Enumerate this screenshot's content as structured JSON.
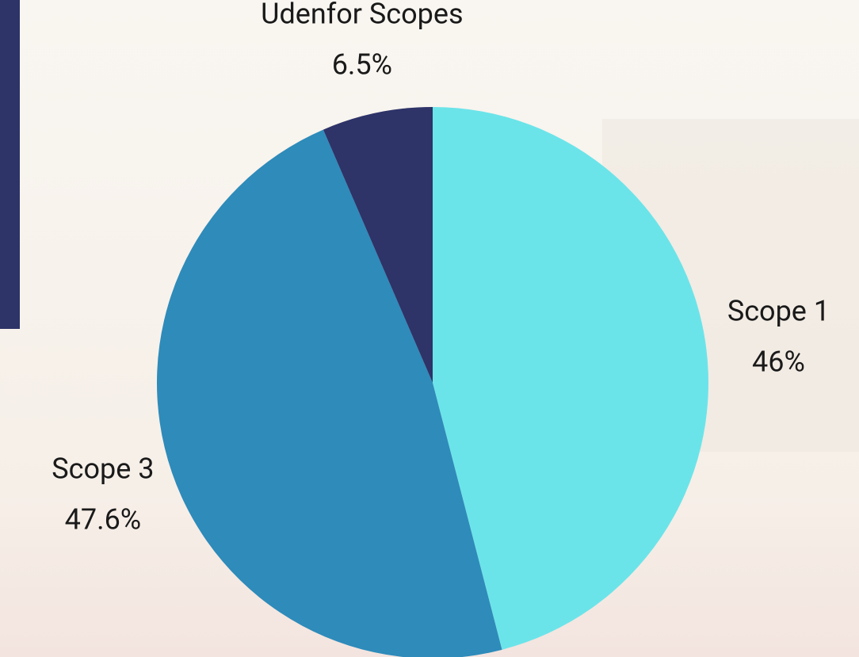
{
  "chart_data": {
    "type": "pie",
    "categories": [
      "Scope 1",
      "Scope 3",
      "Udenfor Scopes"
    ],
    "values": [
      46,
      47.6,
      6.5
    ],
    "value_labels": [
      "46%",
      "47.6%",
      "6.5%"
    ],
    "colors": [
      "#6be4e9",
      "#2e8bba",
      "#2e3368"
    ]
  }
}
